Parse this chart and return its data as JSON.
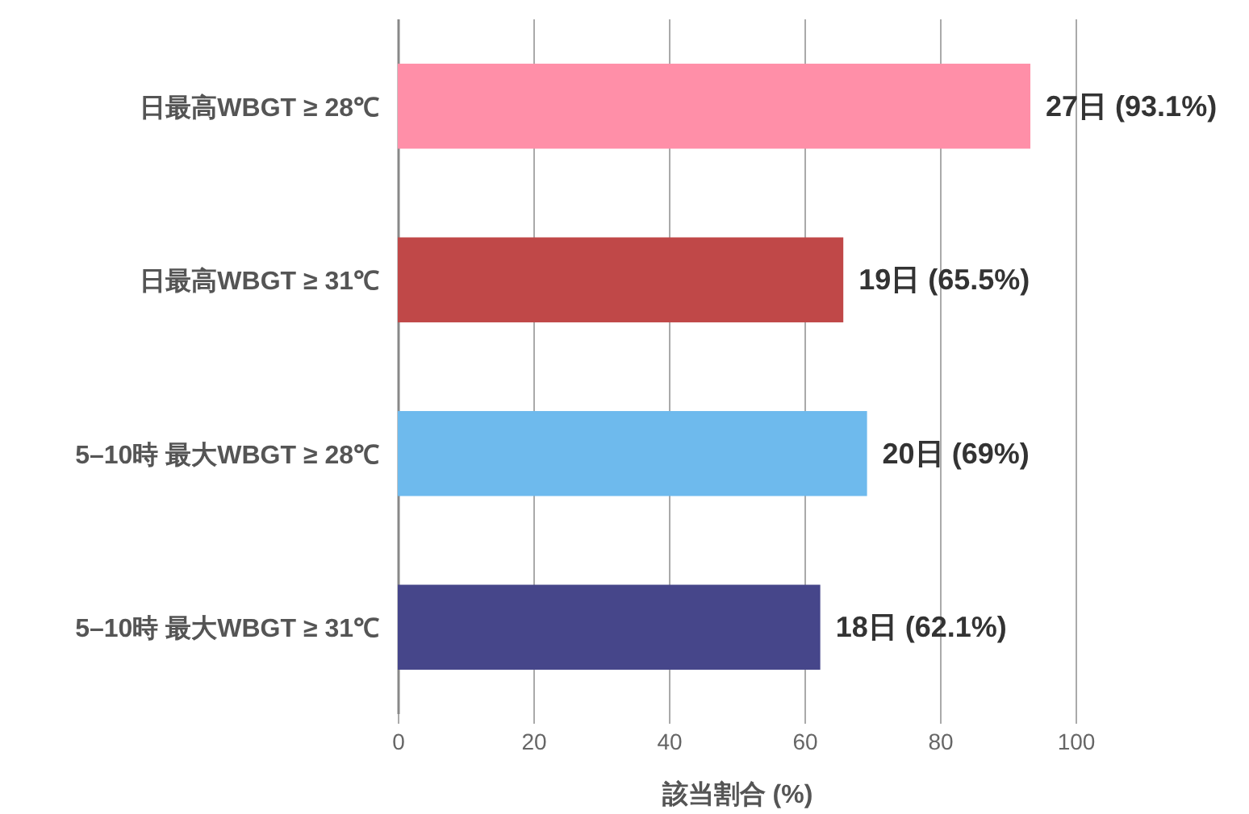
{
  "chart_data": {
    "type": "bar",
    "orientation": "horizontal",
    "xlabel": "該当割合 (%)",
    "categories": [
      "日最高WBGT ≥ 28℃",
      "日最高WBGT ≥ 31℃",
      "5–10時 最大WBGT ≥ 28℃",
      "5–10時 最大WBGT ≥ 31℃"
    ],
    "values": [
      93.1,
      65.5,
      69,
      62.1
    ],
    "colors": [
      "#ff8fa8",
      "#c04848",
      "#6ebaed",
      "#46468a"
    ],
    "value_labels": [
      "27日 (93.1%)",
      "19日 (65.5%)",
      "20日 (69%)",
      "18日 (62.1%)"
    ],
    "xlim": [
      0,
      100
    ],
    "xticks": [
      0,
      20,
      40,
      60,
      80,
      100
    ],
    "grid": "x"
  }
}
